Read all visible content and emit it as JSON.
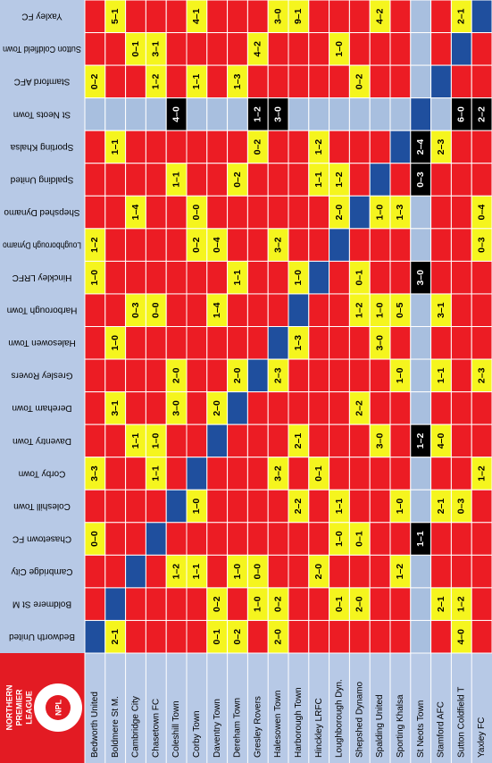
{
  "logo": {
    "lines": [
      "NORTHERN",
      "PREMIER",
      "LEAGUE"
    ],
    "badge": "NPL"
  },
  "colors": {
    "played": "#f5f51e",
    "unplayed": "#ec1c24",
    "same_team": "#1f4f9e",
    "expunged": "#a8bfdf",
    "expunged_played": "#000000",
    "label_bg": "#b7c9e6"
  },
  "table": {
    "columns": [
      {
        "name": "Bedworth United"
      },
      {
        "name": "Boldmere St M."
      },
      {
        "name": "Cambridge City"
      },
      {
        "name": "Chasetown FC"
      },
      {
        "name": "Coleshill Town"
      },
      {
        "name": "Corby Town"
      },
      {
        "name": "Daventry Town"
      },
      {
        "name": "Dereham Town"
      },
      {
        "name": "Gresley Rovers"
      },
      {
        "name": "Halesowen Town"
      },
      {
        "name": "Harborough Town"
      },
      {
        "name": "Hinckley LRFC"
      },
      {
        "name": "Loughborough Dyn."
      },
      {
        "name": "Shepshed Dynamo"
      },
      {
        "name": "Spalding United"
      },
      {
        "name": "Sporting Khalsa"
      },
      {
        "name": "St Neots Town",
        "expunged": true
      },
      {
        "name": "Stamford AFC"
      },
      {
        "name": "Sutton Coldfield T"
      },
      {
        "name": "Yaxley FC"
      }
    ],
    "rows": [
      {
        "team": "Yaxley FC",
        "cells": [
          null,
          "5–1",
          null,
          null,
          null,
          "4–1",
          null,
          null,
          null,
          "3–0",
          "9–1",
          null,
          null,
          null,
          "4–2",
          null,
          null,
          null,
          "2–1",
          null
        ]
      },
      {
        "team": "Sutton Coldfield Town",
        "cells": [
          null,
          null,
          "0–1",
          "3–1",
          null,
          null,
          null,
          null,
          "4–2",
          null,
          null,
          null,
          "1–0",
          null,
          null,
          null,
          null,
          null,
          null,
          null
        ]
      },
      {
        "team": "Stamford AFC",
        "cells": [
          "0–2",
          null,
          null,
          "1–2",
          null,
          "1–1",
          null,
          "1–3",
          null,
          null,
          null,
          null,
          null,
          "0–2",
          null,
          null,
          null,
          null,
          null,
          null
        ]
      },
      {
        "team": "St Neots Town",
        "expunged": true,
        "cells": [
          null,
          null,
          null,
          null,
          "4–0",
          null,
          null,
          null,
          "1–2",
          "3–0",
          null,
          null,
          null,
          null,
          null,
          null,
          null,
          null,
          "6–0",
          "2–2"
        ]
      },
      {
        "team": "Sporting Khalsa",
        "cells": [
          null,
          "1–1",
          null,
          null,
          null,
          null,
          null,
          null,
          "0–2",
          null,
          null,
          "1–2",
          null,
          null,
          null,
          null,
          "2–4",
          "2–3",
          null,
          null
        ]
      },
      {
        "team": "Spalding United",
        "cells": [
          null,
          null,
          null,
          null,
          "1–1",
          null,
          null,
          "0–2",
          null,
          null,
          null,
          "1–1",
          "1–2",
          null,
          null,
          null,
          "0–3",
          null,
          null,
          null
        ]
      },
      {
        "team": "Shepshed Dynamo",
        "cells": [
          null,
          null,
          "1–4",
          null,
          null,
          "0–0",
          null,
          null,
          null,
          null,
          null,
          null,
          "2–0",
          null,
          "1–0",
          "1–3",
          null,
          null,
          null,
          "0–4"
        ]
      },
      {
        "team": "Loughborough Dynamo",
        "cells": [
          "1–2",
          null,
          null,
          null,
          null,
          "0–2",
          "0–4",
          null,
          null,
          "3–2",
          null,
          null,
          null,
          null,
          null,
          null,
          null,
          null,
          null,
          "0–3"
        ]
      },
      {
        "team": "Hinckley LRFC",
        "cells": [
          "1–0",
          null,
          null,
          null,
          null,
          null,
          null,
          "1–1",
          null,
          null,
          "1–0",
          null,
          null,
          "0–1",
          null,
          null,
          "3–0",
          null,
          null,
          null
        ]
      },
      {
        "team": "Harborough Town",
        "cells": [
          null,
          null,
          "0–3",
          "0–0",
          null,
          null,
          "1–4",
          null,
          null,
          null,
          null,
          null,
          null,
          "1–2",
          "1–0",
          "0–5",
          null,
          "3–1",
          null,
          null
        ]
      },
      {
        "team": "Halesowen Town",
        "cells": [
          null,
          "1–0",
          null,
          null,
          null,
          null,
          null,
          null,
          null,
          null,
          "1–3",
          null,
          null,
          null,
          "3–0",
          null,
          null,
          null,
          null,
          null
        ]
      },
      {
        "team": "Gresley Rovers",
        "cells": [
          null,
          null,
          null,
          null,
          "2–0",
          null,
          null,
          "2–0",
          null,
          "2–3",
          null,
          null,
          null,
          null,
          null,
          "1–0",
          null,
          "1–1",
          null,
          "2–3"
        ]
      },
      {
        "team": "Dereham Town",
        "cells": [
          null,
          "3–1",
          null,
          null,
          "3–0",
          null,
          "2–0",
          null,
          null,
          null,
          null,
          null,
          null,
          "2–2",
          null,
          null,
          null,
          null,
          null,
          null
        ]
      },
      {
        "team": "Daventry Town",
        "cells": [
          null,
          null,
          "1–1",
          "1–0",
          null,
          null,
          null,
          null,
          null,
          null,
          "2–1",
          null,
          null,
          null,
          "3–0",
          null,
          "1–2",
          "4–0",
          null,
          null
        ]
      },
      {
        "team": "Corby Town",
        "cells": [
          "3–3",
          null,
          null,
          "1–1",
          null,
          null,
          null,
          null,
          null,
          "3–2",
          null,
          "0–1",
          null,
          null,
          null,
          null,
          null,
          null,
          null,
          "1–2"
        ]
      },
      {
        "team": "Coleshill Town",
        "cells": [
          null,
          null,
          null,
          null,
          null,
          "1–0",
          null,
          null,
          null,
          null,
          "2–2",
          null,
          "1–1",
          null,
          null,
          "1–0",
          null,
          "2–1",
          "0–3",
          null
        ]
      },
      {
        "team": "Chasetown FC",
        "cells": [
          "0–0",
          null,
          null,
          null,
          null,
          null,
          null,
          null,
          null,
          null,
          null,
          null,
          "1–0",
          "0–1",
          null,
          null,
          "1–1",
          null,
          null,
          null
        ]
      },
      {
        "team": "Cambridge City",
        "cells": [
          null,
          null,
          null,
          null,
          "1–2",
          "1–1",
          null,
          "1–0",
          "0–0",
          null,
          null,
          "2–0",
          null,
          null,
          null,
          "1–2",
          null,
          null,
          null,
          null
        ]
      },
      {
        "team": "Boldmere St M",
        "cells": [
          null,
          null,
          null,
          null,
          null,
          null,
          "0–2",
          null,
          "1–0",
          "0–2",
          null,
          null,
          "0–1",
          "2–0",
          null,
          null,
          null,
          "2–1",
          "1–2",
          null
        ]
      },
      {
        "team": "Bedworth United",
        "cells": [
          null,
          "2–1",
          null,
          null,
          null,
          null,
          "0–1",
          "0–2",
          null,
          "2–0",
          null,
          null,
          null,
          null,
          null,
          null,
          null,
          null,
          "4–0",
          null
        ]
      }
    ]
  }
}
